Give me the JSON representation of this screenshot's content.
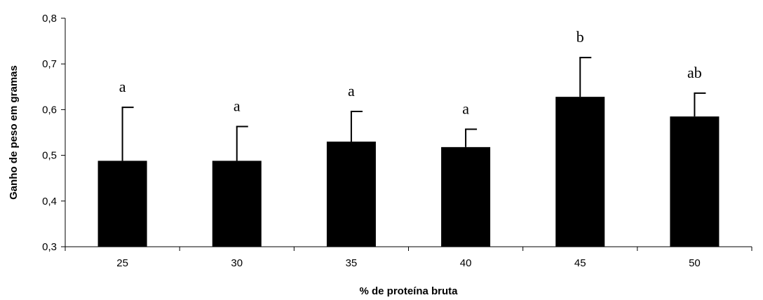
{
  "chart_data": {
    "type": "bar",
    "xlabel": "% de proteína bruta",
    "ylabel": "Ganho de peso em gramas",
    "categories": [
      "25",
      "30",
      "35",
      "40",
      "45",
      "50"
    ],
    "values": [
      0.488,
      0.488,
      0.53,
      0.518,
      0.628,
      0.585
    ],
    "error_upper": [
      0.605,
      0.563,
      0.596,
      0.557,
      0.714,
      0.636
    ],
    "significance_labels": [
      "a",
      "a",
      "a",
      "a",
      "b",
      "ab"
    ],
    "ylim": [
      0.3,
      0.8
    ],
    "yticks": [
      0.3,
      0.4,
      0.5,
      0.6,
      0.7,
      0.8
    ],
    "ytick_labels": [
      "0,3",
      "0,4",
      "0,5",
      "0,6",
      "0,7",
      "0,8"
    ],
    "grid": false,
    "legend": "none",
    "bar_color": "#000000"
  }
}
